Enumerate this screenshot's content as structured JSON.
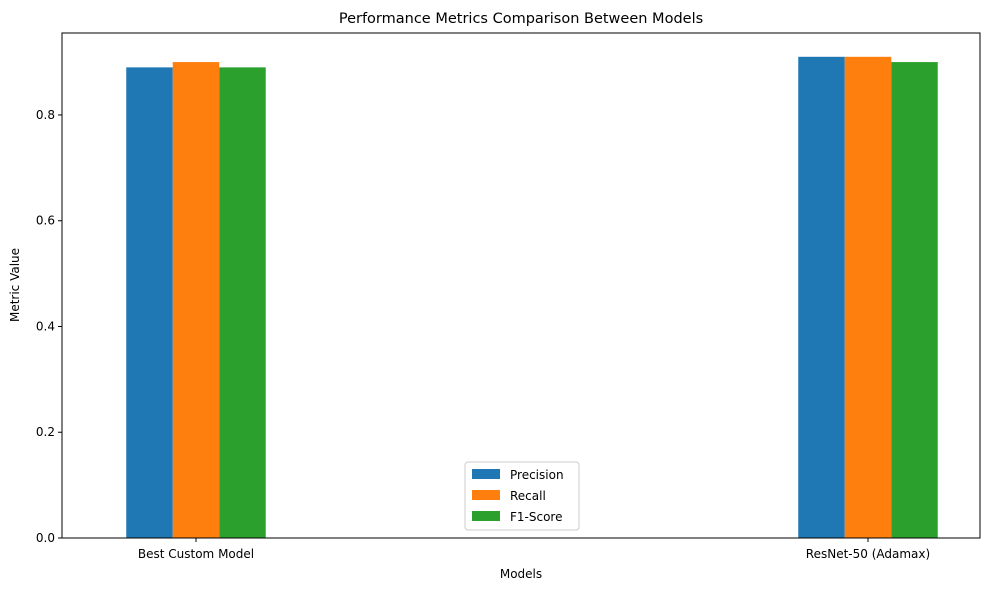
{
  "chart_data": {
    "type": "bar",
    "title": "Performance Metrics Comparison Between Models",
    "xlabel": "Models",
    "ylabel": "Metric Value",
    "categories": [
      "Best Custom Model",
      "ResNet-50 (Adamax)"
    ],
    "series": [
      {
        "name": "Precision",
        "values": [
          0.89,
          0.91
        ],
        "color": "#1f77b4"
      },
      {
        "name": "Recall",
        "values": [
          0.9,
          0.91
        ],
        "color": "#ff7f0e"
      },
      {
        "name": "F1-Score",
        "values": [
          0.89,
          0.9
        ],
        "color": "#2ca02c"
      }
    ],
    "ylim": [
      0,
      0.955
    ],
    "yticks": [
      "0.0",
      "0.2",
      "0.4",
      "0.6",
      "0.8"
    ],
    "ytick_values": [
      0.0,
      0.2,
      0.4,
      0.6,
      0.8
    ],
    "grid": false,
    "legend_position": "lower center"
  }
}
